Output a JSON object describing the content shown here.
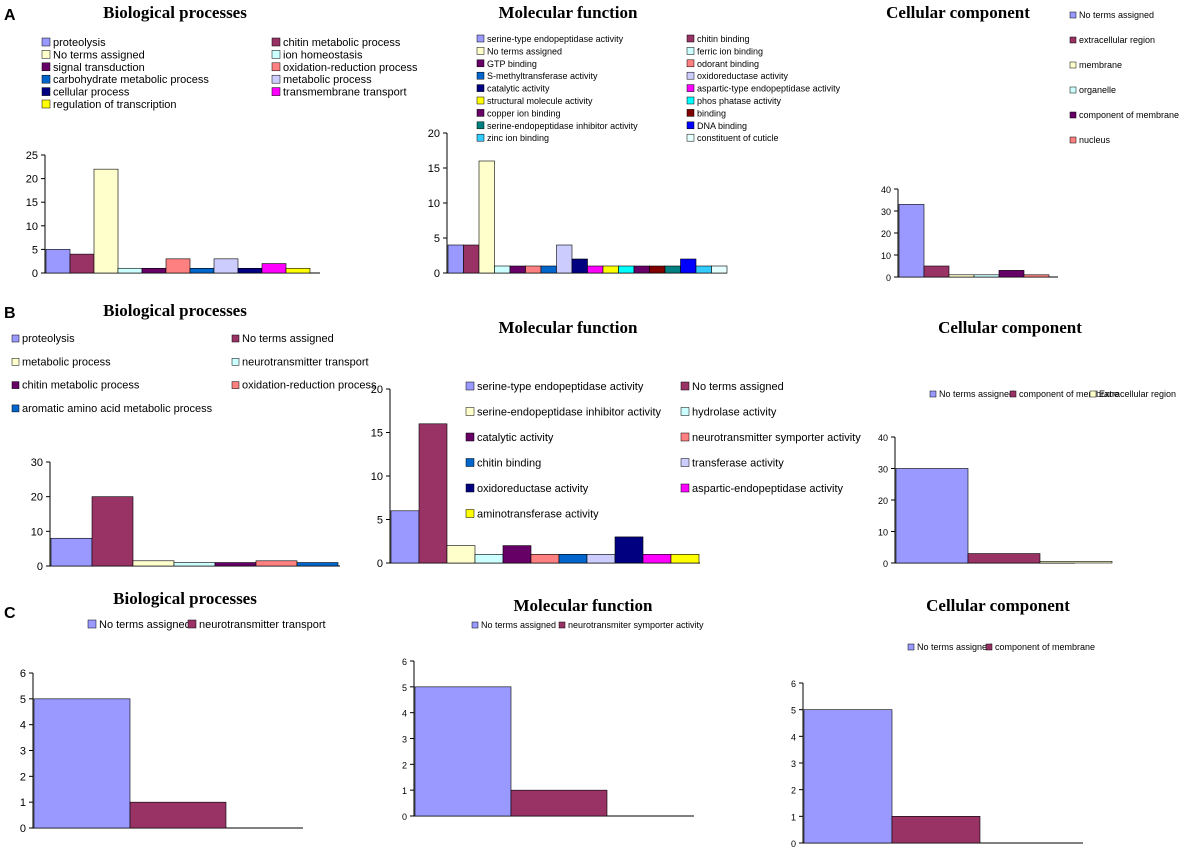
{
  "panels": {
    "A": "A",
    "B": "B",
    "C": "C"
  },
  "colors": {
    "periwinkle": "#9999ff",
    "plum": "#993366",
    "ivory": "#ffffcc",
    "lightcyan": "#ccffff",
    "purple": "#660066",
    "salmon": "#ff8080",
    "blue": "#0066cc",
    "lavender": "#ccccff",
    "navy": "#000080",
    "magenta": "#ff00ff",
    "yellow": "#ffff00",
    "cyan": "#00ffff",
    "teal": "#008080",
    "darkred": "#800000",
    "royal": "#0000ff",
    "skyblue": "#33ccff",
    "verylight": "#e6ffff"
  },
  "chart_data": [
    {
      "id": "A-bp",
      "type": "bar",
      "title": "Biological processes",
      "ylim": [
        0,
        25
      ],
      "yticks": [
        0,
        5,
        10,
        15,
        20,
        25
      ],
      "categories": [
        "proteolysis",
        "chitin metabolic process",
        "No terms assigned",
        "ion homeostasis",
        "signal transduction",
        "oxidation-reduction process",
        "carbohydrate metabolic process",
        "metabolic process",
        "cellular process",
        "transmembrane transport",
        "regulation of transcription"
      ],
      "values": [
        5,
        4,
        22,
        1,
        1,
        3,
        1,
        3,
        1,
        2,
        1
      ],
      "colors": [
        "periwinkle",
        "plum",
        "ivory",
        "lightcyan",
        "purple",
        "salmon",
        "blue",
        "lavender",
        "navy",
        "magenta",
        "yellow"
      ]
    },
    {
      "id": "A-mf",
      "type": "bar",
      "title": "Molecular function",
      "ylim": [
        0,
        20
      ],
      "yticks": [
        0,
        5,
        10,
        15,
        20
      ],
      "categories": [
        "serine-type endopeptidase activity",
        "chitin binding",
        "No terms assigned",
        "ferric ion binding",
        "GTP binding",
        "odorant binding",
        "S-methyltransferase activity",
        "oxidoreductase activity",
        "catalytic activity",
        "aspartic-type endopeptidase activity",
        "structural molecule activity",
        "phos phatase activity",
        "copper ion binding",
        "binding",
        "serine-endopeptidase inhibitor activity",
        "DNA binding",
        "zinc ion binding",
        "constituent of cuticle"
      ],
      "values": [
        4,
        4,
        16,
        1,
        1,
        1,
        1,
        4,
        2,
        1,
        1,
        1,
        1,
        1,
        1,
        2,
        1,
        1
      ],
      "colors": [
        "periwinkle",
        "plum",
        "ivory",
        "lightcyan",
        "purple",
        "salmon",
        "blue",
        "lavender",
        "navy",
        "magenta",
        "yellow",
        "cyan",
        "purple",
        "darkred",
        "teal",
        "royal",
        "skyblue",
        "verylight"
      ]
    },
    {
      "id": "A-cc",
      "type": "bar",
      "title": "Cellular component",
      "ylim": [
        0,
        40
      ],
      "yticks": [
        0,
        10,
        20,
        30,
        40
      ],
      "categories": [
        "No terms assigned",
        "extracellular region",
        "membrane",
        "organelle",
        "component of membrane",
        "nucleus"
      ],
      "values": [
        33,
        5,
        1,
        1,
        3,
        1
      ],
      "colors": [
        "periwinkle",
        "plum",
        "ivory",
        "lightcyan",
        "purple",
        "salmon"
      ]
    },
    {
      "id": "B-bp",
      "type": "bar",
      "title": "Biological processes",
      "ylim": [
        0,
        30
      ],
      "yticks": [
        0,
        10,
        20,
        30
      ],
      "categories": [
        "proteolysis",
        "No terms assigned",
        "metabolic process",
        "neurotransmitter transport",
        "chitin metabolic process",
        "oxidation-reduction process",
        "aromatic amino acid metabolic process"
      ],
      "values": [
        8,
        20,
        1.5,
        1,
        1,
        1.5,
        1
      ],
      "colors": [
        "periwinkle",
        "plum",
        "ivory",
        "lightcyan",
        "purple",
        "salmon",
        "blue"
      ]
    },
    {
      "id": "B-mf",
      "type": "bar",
      "title": "Molecular function",
      "ylim": [
        0,
        20
      ],
      "yticks": [
        0,
        5,
        10,
        15,
        20
      ],
      "categories": [
        "serine-type endopeptidase activity",
        "No terms assigned",
        "serine-endopeptidase inhibitor activity",
        "hydrolase activity",
        "catalytic activity",
        "neurotransmitter symporter activity",
        "chitin binding",
        "transferase activity",
        "oxidoreductase activity",
        "aspartic-endopeptidase activity",
        "aminotransferase activity"
      ],
      "values": [
        6,
        16,
        2,
        1,
        2,
        1,
        1,
        1,
        3,
        1,
        1
      ],
      "colors": [
        "periwinkle",
        "plum",
        "ivory",
        "lightcyan",
        "purple",
        "salmon",
        "blue",
        "lavender",
        "navy",
        "magenta",
        "yellow"
      ]
    },
    {
      "id": "B-cc",
      "type": "bar",
      "title": "Cellular component",
      "ylim": [
        0,
        40
      ],
      "yticks": [
        0,
        10,
        20,
        30,
        40
      ],
      "categories": [
        "No terms assigned",
        "component of membrane",
        "Extracellular region"
      ],
      "values": [
        30,
        3,
        0.5
      ],
      "colors": [
        "periwinkle",
        "plum",
        "ivory"
      ]
    },
    {
      "id": "C-bp",
      "type": "bar",
      "title": "Biological processes",
      "ylim": [
        0,
        6
      ],
      "yticks": [
        0,
        1,
        2,
        3,
        4,
        5,
        6
      ],
      "categories": [
        "No terms assigned",
        "neurotransmitter transport"
      ],
      "values": [
        5,
        1
      ],
      "colors": [
        "periwinkle",
        "plum"
      ]
    },
    {
      "id": "C-mf",
      "type": "bar",
      "title": "Molecular function",
      "ylim": [
        0,
        6
      ],
      "yticks": [
        0,
        1,
        2,
        3,
        4,
        5,
        6
      ],
      "categories": [
        "No terms assigned",
        "neurotransmiter symporter activity"
      ],
      "values": [
        5,
        1
      ],
      "colors": [
        "periwinkle",
        "plum"
      ]
    },
    {
      "id": "C-cc",
      "type": "bar",
      "title": "Cellular component",
      "ylim": [
        0,
        6
      ],
      "yticks": [
        0,
        1,
        2,
        3,
        4,
        5,
        6
      ],
      "categories": [
        "No terms assigned",
        "component of membrane"
      ],
      "values": [
        5,
        1
      ],
      "colors": [
        "periwinkle",
        "plum"
      ]
    }
  ]
}
